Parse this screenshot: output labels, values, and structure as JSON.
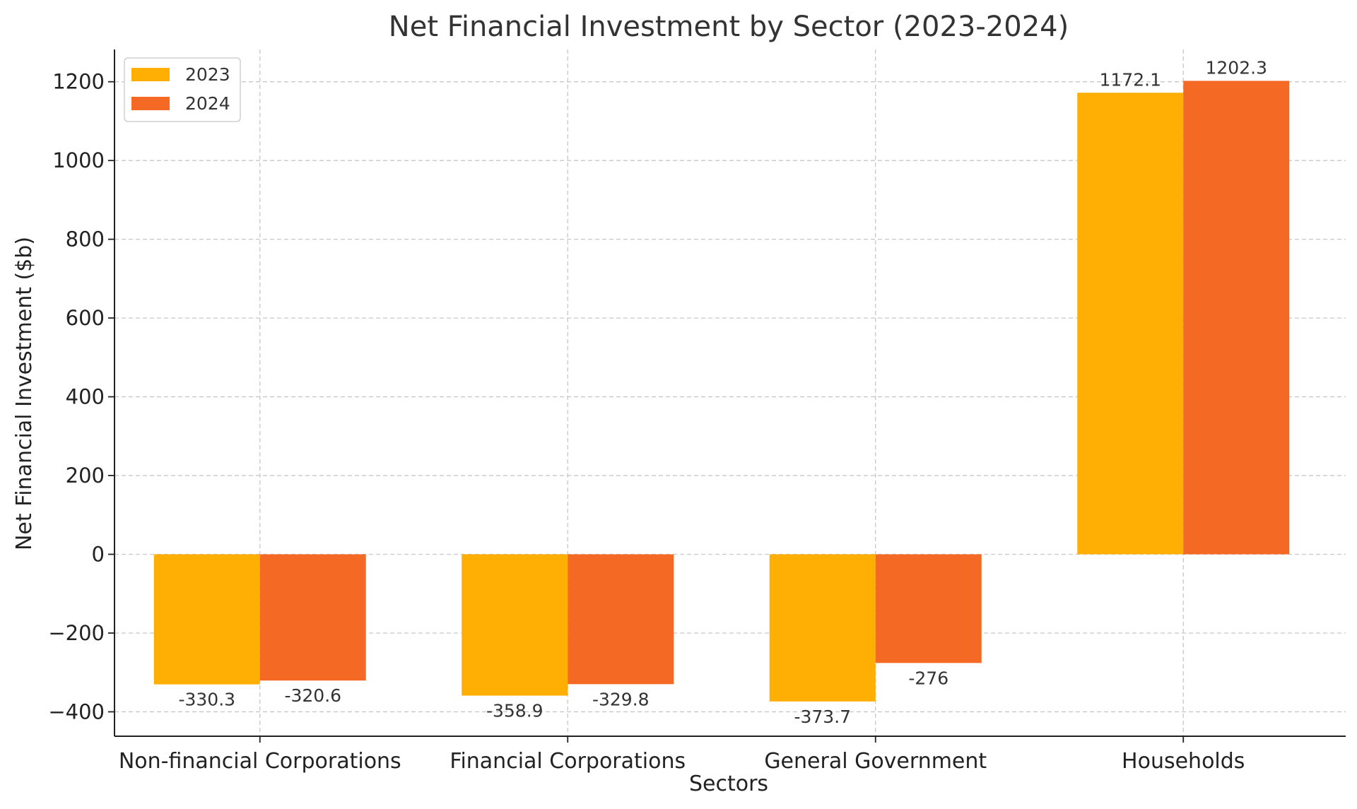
{
  "chart_data": {
    "type": "bar",
    "title": "Net Financial Investment by Sector (2023-2024)",
    "xlabel": "Sectors",
    "ylabel": "Net Financial Investment ($b)",
    "categories": [
      "Non-financial Corporations",
      "Financial Corporations",
      "General Government",
      "Households"
    ],
    "series": [
      {
        "name": "2023",
        "color": "#FFAE03",
        "values": [
          -330.3,
          -358.9,
          -373.7,
          1172.1
        ],
        "labels": [
          "-330.3",
          "-358.9",
          "-373.7",
          "1172.1"
        ]
      },
      {
        "name": "2024",
        "color": "#F46A25",
        "values": [
          -320.6,
          -329.8,
          -276,
          1202.3
        ],
        "labels": [
          "-320.6",
          "-329.8",
          "-276",
          "1202.3"
        ]
      }
    ],
    "ylim": [
      -462,
      1282
    ],
    "yticks": [
      -400,
      -200,
      0,
      200,
      400,
      600,
      800,
      1000,
      1200
    ],
    "ytick_labels": [
      "−400",
      "−200",
      "0",
      "200",
      "400",
      "600",
      "800",
      "1000",
      "1200"
    ],
    "grid": true,
    "legend_position": "top-left"
  }
}
